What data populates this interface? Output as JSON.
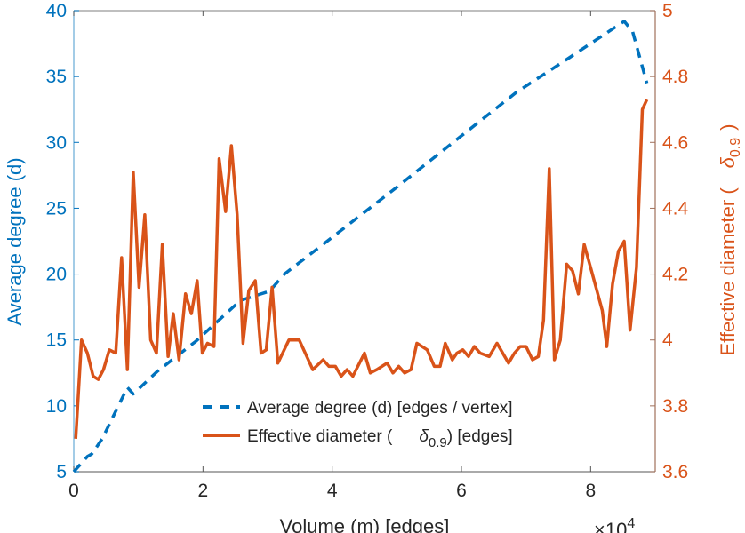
{
  "chart_data": {
    "type": "line",
    "xlabel": "Volume (m) [edges]",
    "x_multiplier": "×10",
    "x_multiplier_exp": "4",
    "xlim": [
      0,
      9
    ],
    "xticks": [
      0,
      2,
      4,
      6,
      8
    ],
    "ylabel_left": "Average degree (d)",
    "ylim_left": [
      5,
      40
    ],
    "yticks_left": [
      5,
      10,
      15,
      20,
      25,
      30,
      35,
      40
    ],
    "ylabel_right_prefix": "Effective diameter (",
    "ylabel_right_symbol": "δ",
    "ylabel_right_sub": "0.9",
    "ylabel_right_suffix": ")",
    "ylim_right": [
      3.6,
      5
    ],
    "yticks_right": [
      "3.6",
      "3.8",
      "4",
      "4.2",
      "4.4",
      "4.6",
      "4.8",
      "5"
    ],
    "colors": {
      "left": "#0072BD",
      "right": "#D95319"
    },
    "legend": {
      "placement": "bottom-center",
      "entries": [
        {
          "label": "Average degree (d) [edges / vertex]"
        },
        {
          "label_prefix": "Effective diameter (",
          "symbol": "δ",
          "sub": "0.9",
          "label_suffix": ") [edges]"
        }
      ]
    },
    "series": [
      {
        "name": "Average degree (d) [edges / vertex]",
        "axis": "left",
        "style": "dashed",
        "x": [
          0.0,
          0.21,
          0.28,
          0.44,
          0.83,
          0.92,
          1.29,
          1.89,
          2.58,
          3.03,
          3.26,
          4.0,
          5.0,
          6.0,
          6.85,
          7.6,
          8.52,
          8.65,
          8.87
        ],
        "y": [
          5.0,
          6.15,
          6.35,
          7.5,
          11.4,
          10.9,
          12.6,
          14.9,
          18.0,
          18.7,
          20.0,
          22.8,
          26.6,
          30.5,
          33.8,
          36.2,
          39.2,
          38.4,
          34.5
        ]
      },
      {
        "name": "Effective diameter (δ0.9) [edges]",
        "axis": "right",
        "style": "solid",
        "x": [
          0.03,
          0.12,
          0.21,
          0.3,
          0.38,
          0.46,
          0.55,
          0.65,
          0.74,
          0.83,
          0.92,
          1.01,
          1.1,
          1.19,
          1.28,
          1.37,
          1.46,
          1.54,
          1.63,
          1.73,
          1.82,
          1.91,
          1.99,
          2.07,
          2.17,
          2.25,
          2.35,
          2.44,
          2.53,
          2.62,
          2.71,
          2.81,
          2.9,
          2.98,
          3.07,
          3.16,
          3.33,
          3.49,
          3.7,
          3.86,
          3.95,
          4.05,
          4.14,
          4.23,
          4.32,
          4.5,
          4.59,
          4.69,
          4.85,
          4.94,
          5.03,
          5.12,
          5.22,
          5.31,
          5.47,
          5.58,
          5.67,
          5.75,
          5.86,
          5.93,
          6.02,
          6.11,
          6.2,
          6.29,
          6.43,
          6.55,
          6.73,
          6.82,
          6.91,
          7.0,
          7.1,
          7.19,
          7.27,
          7.36,
          7.44,
          7.53,
          7.63,
          7.72,
          7.81,
          7.9,
          8.0,
          8.18,
          8.25,
          8.34,
          8.43,
          8.52,
          8.61,
          8.71,
          8.8,
          8.87
        ],
        "y": [
          3.7,
          4.0,
          3.96,
          3.89,
          3.88,
          3.91,
          3.97,
          3.96,
          4.25,
          3.91,
          4.51,
          4.16,
          4.38,
          4.0,
          3.96,
          4.29,
          3.95,
          4.08,
          3.94,
          4.14,
          4.08,
          4.18,
          3.96,
          3.99,
          3.98,
          4.55,
          4.39,
          4.59,
          4.38,
          3.99,
          4.15,
          4.18,
          3.96,
          3.97,
          4.16,
          3.93,
          4.0,
          4.0,
          3.91,
          3.94,
          3.92,
          3.92,
          3.89,
          3.91,
          3.89,
          3.96,
          3.9,
          3.91,
          3.93,
          3.9,
          3.92,
          3.9,
          3.91,
          3.99,
          3.97,
          3.92,
          3.92,
          3.99,
          3.94,
          3.96,
          3.97,
          3.95,
          3.98,
          3.96,
          3.95,
          3.99,
          3.93,
          3.96,
          3.98,
          3.98,
          3.94,
          3.95,
          4.06,
          4.52,
          3.94,
          4.0,
          4.23,
          4.21,
          4.14,
          4.29,
          4.22,
          4.09,
          3.98,
          4.17,
          4.27,
          4.3,
          4.03,
          4.22,
          4.7,
          4.73
        ]
      }
    ]
  }
}
